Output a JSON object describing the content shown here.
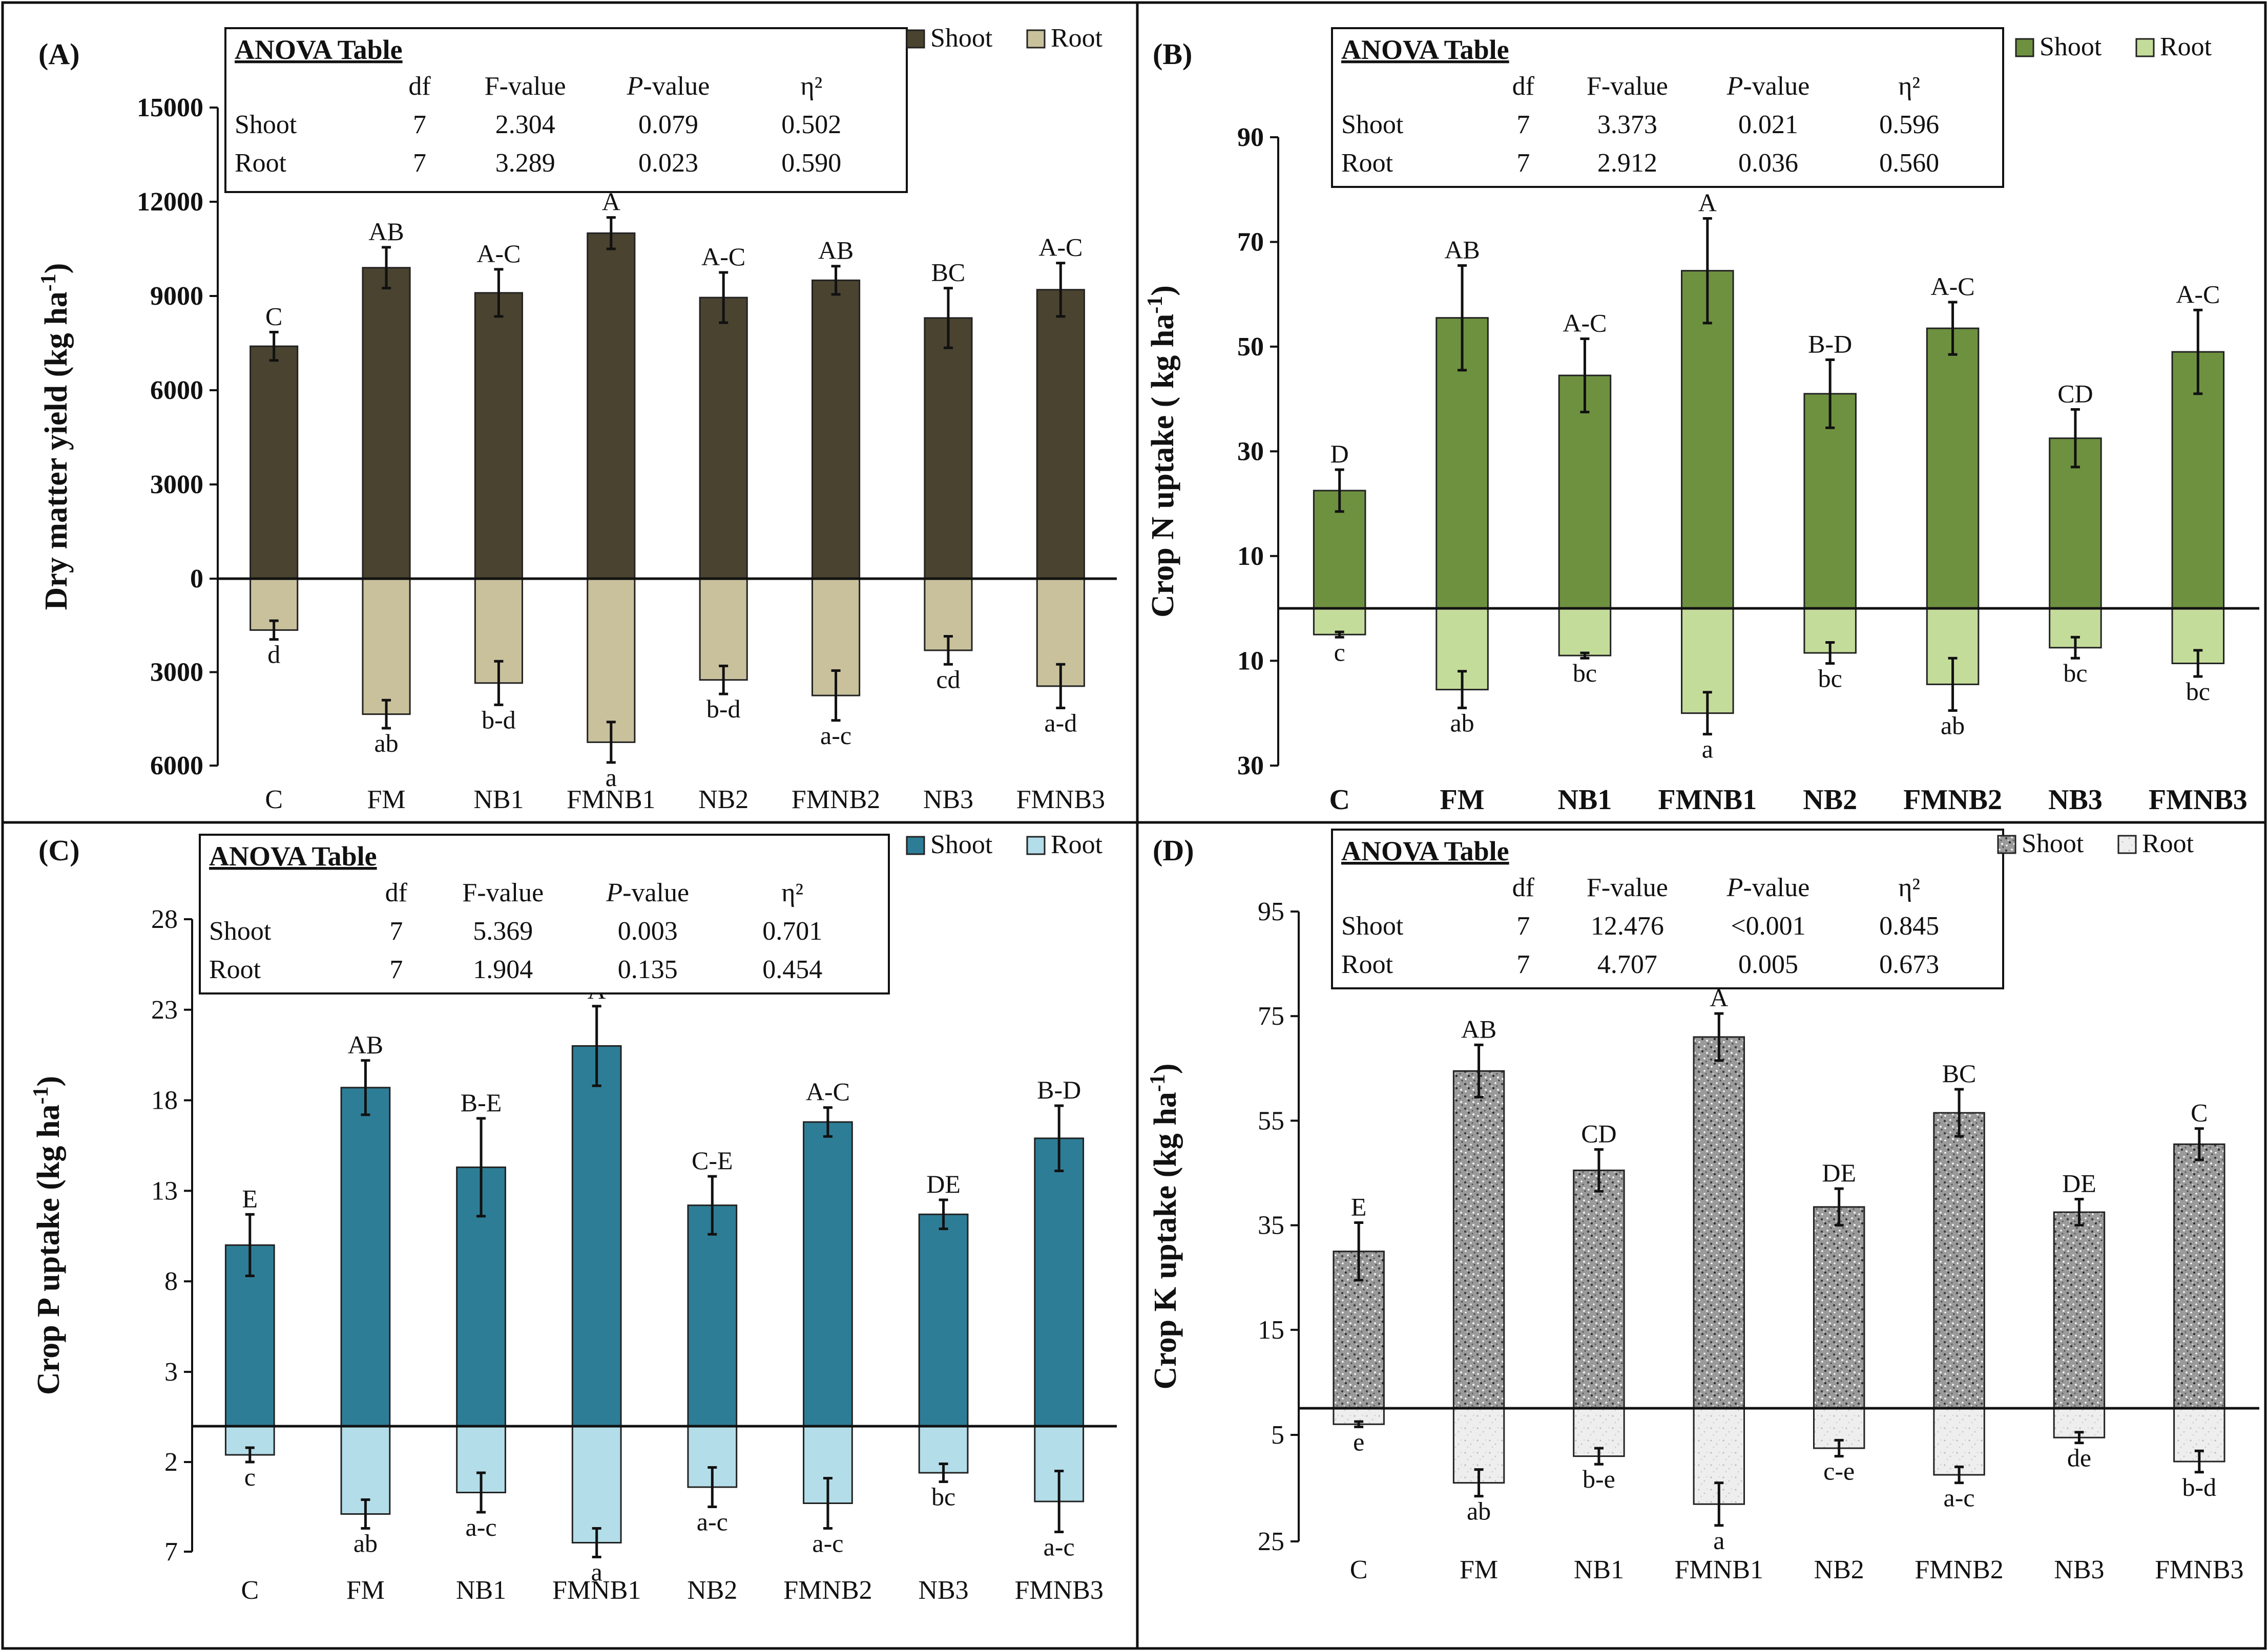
{
  "figure": {
    "panels": [
      {
        "id": "A",
        "tag": "(A)",
        "ylabel": "Dry matter yield (kg ha",
        "ylabel_sup": "-1",
        "ylabel_end": ")",
        "legend": [
          "Shoot",
          "Root"
        ],
        "anova": {
          "title": "ANOVA Table",
          "headers": [
            "df",
            "F-value",
            "P-value",
            "η²"
          ],
          "rows": [
            {
              "name": "Shoot",
              "df": "7",
              "f": "2.304",
              "p": "0.079",
              "eta": "0.502"
            },
            {
              "name": "Root",
              "df": "7",
              "f": "3.289",
              "p": "0.023",
              "eta": "0.590"
            }
          ]
        },
        "y_ticks_shoot": [
          "15000",
          "12000",
          "9000",
          "6000",
          "3000",
          "0"
        ],
        "y_ticks_root": [
          "3000",
          "6000"
        ],
        "colors": {
          "shoot": "#4a4330",
          "root": "#c9c19c"
        },
        "pattern": "none",
        "bold_categories": false
      },
      {
        "id": "B",
        "tag": "(B)",
        "ylabel": "Crop N uptake ( kg ha",
        "ylabel_sup": "-1",
        "ylabel_end": ")",
        "legend": [
          "Shoot",
          "Root"
        ],
        "anova": {
          "title": "ANOVA Table",
          "headers": [
            "df",
            "F-value",
            "P-value",
            "η²"
          ],
          "rows": [
            {
              "name": "Shoot",
              "df": "7",
              "f": "3.373",
              "p": "0.021",
              "eta": "0.596"
            },
            {
              "name": "Root",
              "df": "7",
              "f": "2.912",
              "p": "0.036",
              "eta": "0.560"
            }
          ]
        },
        "y_ticks_shoot": [
          "90",
          "70",
          "50",
          "30",
          "10"
        ],
        "y_ticks_root": [
          "10",
          "30"
        ],
        "colors": {
          "shoot": "#6e9140",
          "root": "#c4dc9a"
        },
        "pattern": "none",
        "bold_categories": true
      },
      {
        "id": "C",
        "tag": "(C)",
        "ylabel": "Crop P uptake (kg ha",
        "ylabel_sup": "-1",
        "ylabel_end": ")",
        "legend": [
          "Shoot",
          "Root"
        ],
        "anova": {
          "title": "ANOVA Table",
          "headers": [
            "df",
            "F-value",
            "P-value",
            "η²"
          ],
          "rows": [
            {
              "name": "Shoot",
              "df": "7",
              "f": "5.369",
              "p": "0.003",
              "eta": "0.701"
            },
            {
              "name": "Root",
              "df": "7",
              "f": "1.904",
              "p": "0.135",
              "eta": "0.454"
            }
          ]
        },
        "y_ticks_shoot": [
          "28",
          "23",
          "18",
          "13",
          "8",
          "3"
        ],
        "y_ticks_root": [
          "2",
          "7"
        ],
        "colors": {
          "shoot": "#2e7d96",
          "root": "#b3dde8"
        },
        "pattern": "none",
        "bold_categories": false
      },
      {
        "id": "D",
        "tag": "(D)",
        "ylabel": "Crop K uptake (kg ha",
        "ylabel_sup": "-1",
        "ylabel_end": ")",
        "legend": [
          "Shoot",
          "Root"
        ],
        "anova": {
          "title": "ANOVA Table",
          "headers": [
            "df",
            "F-value",
            "P-value",
            "η²"
          ],
          "rows": [
            {
              "name": "Shoot",
              "df": "7",
              "f": "12.476",
              "p": "<0.001",
              "eta": "0.845"
            },
            {
              "name": "Root",
              "df": "7",
              "f": "4.707",
              "p": "0.005",
              "eta": "0.673"
            }
          ]
        },
        "y_ticks_shoot": [
          "95",
          "75",
          "55",
          "35",
          "15"
        ],
        "y_ticks_root": [
          "5",
          "25"
        ],
        "colors": {
          "shoot": "#8c8c8c",
          "root": "#e6e6e6"
        },
        "pattern": "speckle",
        "bold_categories": false
      }
    ]
  },
  "chart_data": [
    {
      "type": "bar",
      "title": "(A)",
      "ylabel": "Dry matter yield (kg ha-1)",
      "categories": [
        "C",
        "FM",
        "NB1",
        "FMNB1",
        "NB2",
        "FMNB2",
        "NB3",
        "FMNB3"
      ],
      "ylim_shoot": [
        0,
        15000
      ],
      "ylim_root": [
        0,
        6000
      ],
      "series": [
        {
          "name": "Shoot",
          "values": [
            7400,
            9900,
            9100,
            11000,
            8950,
            9500,
            8300,
            9200
          ],
          "errors": [
            450,
            650,
            750,
            500,
            800,
            450,
            950,
            850
          ],
          "letters": [
            "C",
            "AB",
            "A-C",
            "A",
            "A-C",
            "AB",
            "BC",
            "A-C"
          ]
        },
        {
          "name": "Root",
          "values": [
            1650,
            4350,
            3350,
            5250,
            3250,
            3750,
            2300,
            3450
          ],
          "errors": [
            300,
            450,
            700,
            650,
            450,
            800,
            450,
            700
          ],
          "letters": [
            "d",
            "ab",
            "b-d",
            "a",
            "b-d",
            "a-c",
            "cd",
            "a-d"
          ]
        }
      ]
    },
    {
      "type": "bar",
      "title": "(B)",
      "ylabel": "Crop N uptake ( kg ha-1)",
      "categories": [
        "C",
        "FM",
        "NB1",
        "FMNB1",
        "NB2",
        "FMNB2",
        "NB3",
        "FMNB3"
      ],
      "ylim_shoot": [
        0,
        90
      ],
      "ylim_root": [
        0,
        30
      ],
      "series": [
        {
          "name": "Shoot",
          "values": [
            22.5,
            55.5,
            44.5,
            64.5,
            41,
            53.5,
            32.5,
            49
          ],
          "errors": [
            4,
            10,
            7,
            10,
            6.5,
            5,
            5.5,
            8
          ],
          "letters": [
            "D",
            "AB",
            "A-C",
            "A",
            "B-D",
            "A-C",
            "CD",
            "A-C"
          ]
        },
        {
          "name": "Root",
          "values": [
            5,
            15.5,
            9,
            20,
            8.5,
            14.5,
            7.5,
            10.5
          ],
          "errors": [
            0.5,
            3.5,
            0.5,
            4,
            2,
            5,
            2,
            2.5
          ],
          "letters": [
            "c",
            "ab",
            "bc",
            "a",
            "bc",
            "ab",
            "bc",
            "bc"
          ]
        }
      ]
    },
    {
      "type": "bar",
      "title": "(C)",
      "ylabel": "Crop P uptake (kg ha-1)",
      "categories": [
        "C",
        "FM",
        "NB1",
        "FMNB1",
        "NB2",
        "FMNB2",
        "NB3",
        "FMNB3"
      ],
      "ylim_shoot": [
        0,
        28
      ],
      "ylim_root": [
        0,
        7
      ],
      "series": [
        {
          "name": "Shoot",
          "values": [
            10,
            18.7,
            14.3,
            21,
            12.2,
            16.8,
            11.7,
            15.9
          ],
          "errors": [
            1.7,
            1.5,
            2.7,
            2.2,
            1.6,
            0.8,
            0.8,
            1.8
          ],
          "letters": [
            "E",
            "AB",
            "B-E",
            "A",
            "C-E",
            "A-C",
            "DE",
            "B-D"
          ]
        },
        {
          "name": "Root",
          "values": [
            1.6,
            4.9,
            3.7,
            6.5,
            3.4,
            4.3,
            2.6,
            4.2
          ],
          "errors": [
            0.4,
            0.8,
            1.1,
            0.8,
            1.1,
            1.4,
            0.5,
            1.7
          ],
          "letters": [
            "c",
            "ab",
            "a-c",
            "a",
            "a-c",
            "a-c",
            "bc",
            "a-c"
          ]
        }
      ]
    },
    {
      "type": "bar",
      "title": "(D)",
      "ylabel": "Crop K uptake (kg ha-1)",
      "categories": [
        "C",
        "FM",
        "NB1",
        "FMNB1",
        "NB2",
        "FMNB2",
        "NB3",
        "FMNB3"
      ],
      "ylim_shoot": [
        0,
        95
      ],
      "ylim_root": [
        0,
        25
      ],
      "series": [
        {
          "name": "Shoot",
          "values": [
            30,
            64.5,
            45.5,
            71,
            38.5,
            56.5,
            37.5,
            50.5
          ],
          "errors": [
            5.5,
            5,
            4,
            4.5,
            3.5,
            4.5,
            2.5,
            3
          ],
          "letters": [
            "E",
            "AB",
            "CD",
            "A",
            "DE",
            "BC",
            "DE",
            "C"
          ]
        },
        {
          "name": "Root",
          "values": [
            3,
            14,
            9,
            18,
            7.5,
            12.5,
            5.5,
            10
          ],
          "errors": [
            0.5,
            2.5,
            1.5,
            4,
            1.5,
            1.5,
            1,
            2
          ],
          "letters": [
            "e",
            "ab",
            "b-e",
            "a",
            "c-e",
            "a-c",
            "de",
            "b-d"
          ]
        }
      ]
    }
  ]
}
